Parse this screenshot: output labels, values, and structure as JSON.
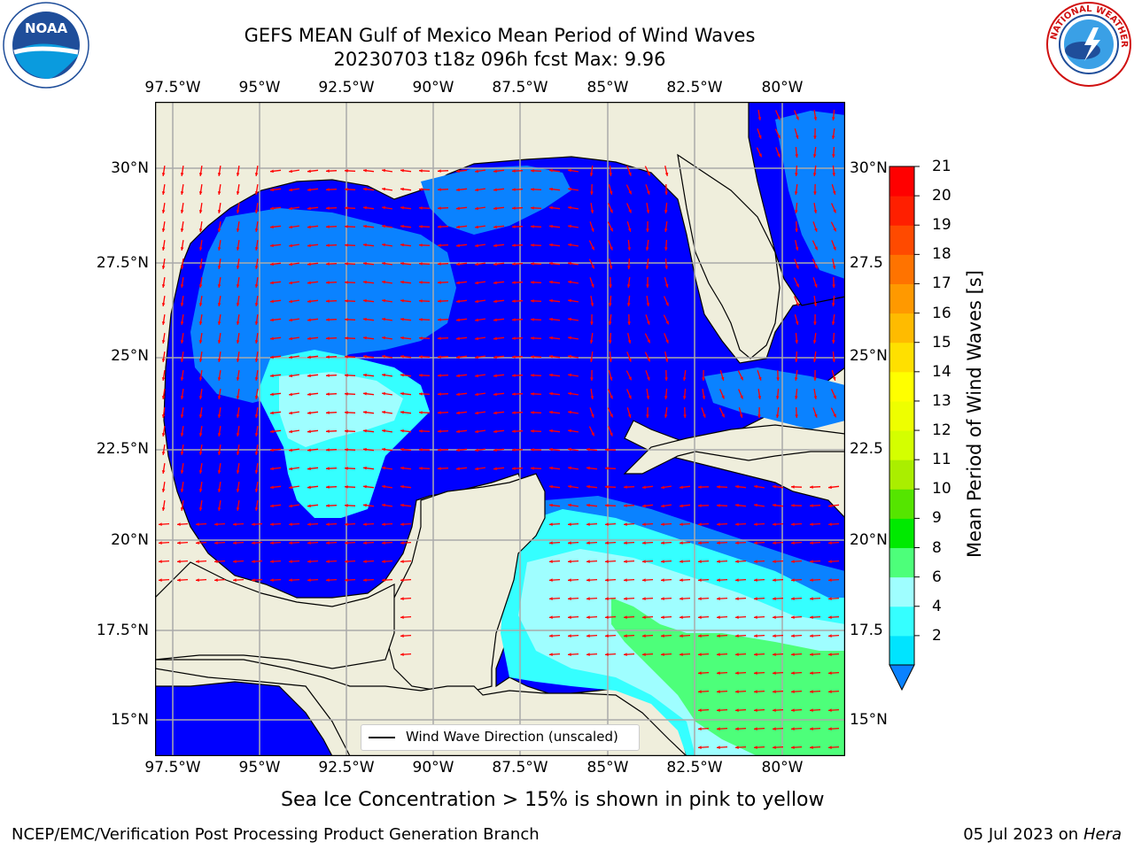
{
  "title": {
    "line1": "GEFS MEAN Gulf of Mexico Mean Period of Wind Waves",
    "line2": "20230703 t18z 096h fcst   Max: 9.96"
  },
  "logos": {
    "noara_text": "NOAA",
    "nws_text": "NATIONAL WEATHER SERVICE"
  },
  "map": {
    "lon_ticks_top": [
      "97.5°W",
      "95°W",
      "92.5°W",
      "90°W",
      "87.5°W",
      "85°W",
      "82.5°W",
      "80°W"
    ],
    "lon_ticks_bottom": [
      "97.5°W",
      "95°W",
      "92.5°W",
      "90°W",
      "87.5°W",
      "85°W",
      "82.5°W",
      "80°W"
    ],
    "lat_ticks_left": [
      "30°N",
      "27.5°N",
      "25°N",
      "22.5°N",
      "20°N",
      "17.5°N",
      "15°N"
    ],
    "lat_ticks_right": [
      "30°N",
      "27.5",
      "25°N",
      "22.5",
      "20°N",
      "17.5",
      "15°N"
    ],
    "legend_label": "Wind Wave Direction (unscaled)",
    "colors": {
      "land": "#efeedc",
      "dark_blue": "#0000ff",
      "mid_blue": "#0a82ff",
      "cyan": "#00ffff",
      "light_cyan": "#9ffeff",
      "green": "#4dff7a",
      "arrow": "#ff0000",
      "grid": "#aaaaaa"
    }
  },
  "colorbar": {
    "label": "Mean Period of Wind Waves [s]",
    "ticks": [
      "21",
      "20",
      "19",
      "18",
      "17",
      "16",
      "15",
      "14",
      "13",
      "12",
      "11",
      "10",
      "9",
      "8",
      "6",
      "4",
      "2"
    ],
    "colors_bottom_to_top": [
      "#0a82ff",
      "#00e4ff",
      "#35ffff",
      "#9ffeff",
      "#4dff7a",
      "#00ea00",
      "#55e500",
      "#aaee00",
      "#d4ff00",
      "#eeff00",
      "#ffff00",
      "#ffe000",
      "#ffbb00",
      "#ff9900",
      "#ff7300",
      "#ff4a00",
      "#ff1f00",
      "#ff0000"
    ]
  },
  "sub_note": "Sea Ice Concentration > 15% is shown in pink to yellow",
  "footer": {
    "left": "NCEP/EMC/Verification Post Processing Product Generation Branch",
    "right_date": "05 Jul 2023 on ",
    "right_machine": "Hera"
  }
}
